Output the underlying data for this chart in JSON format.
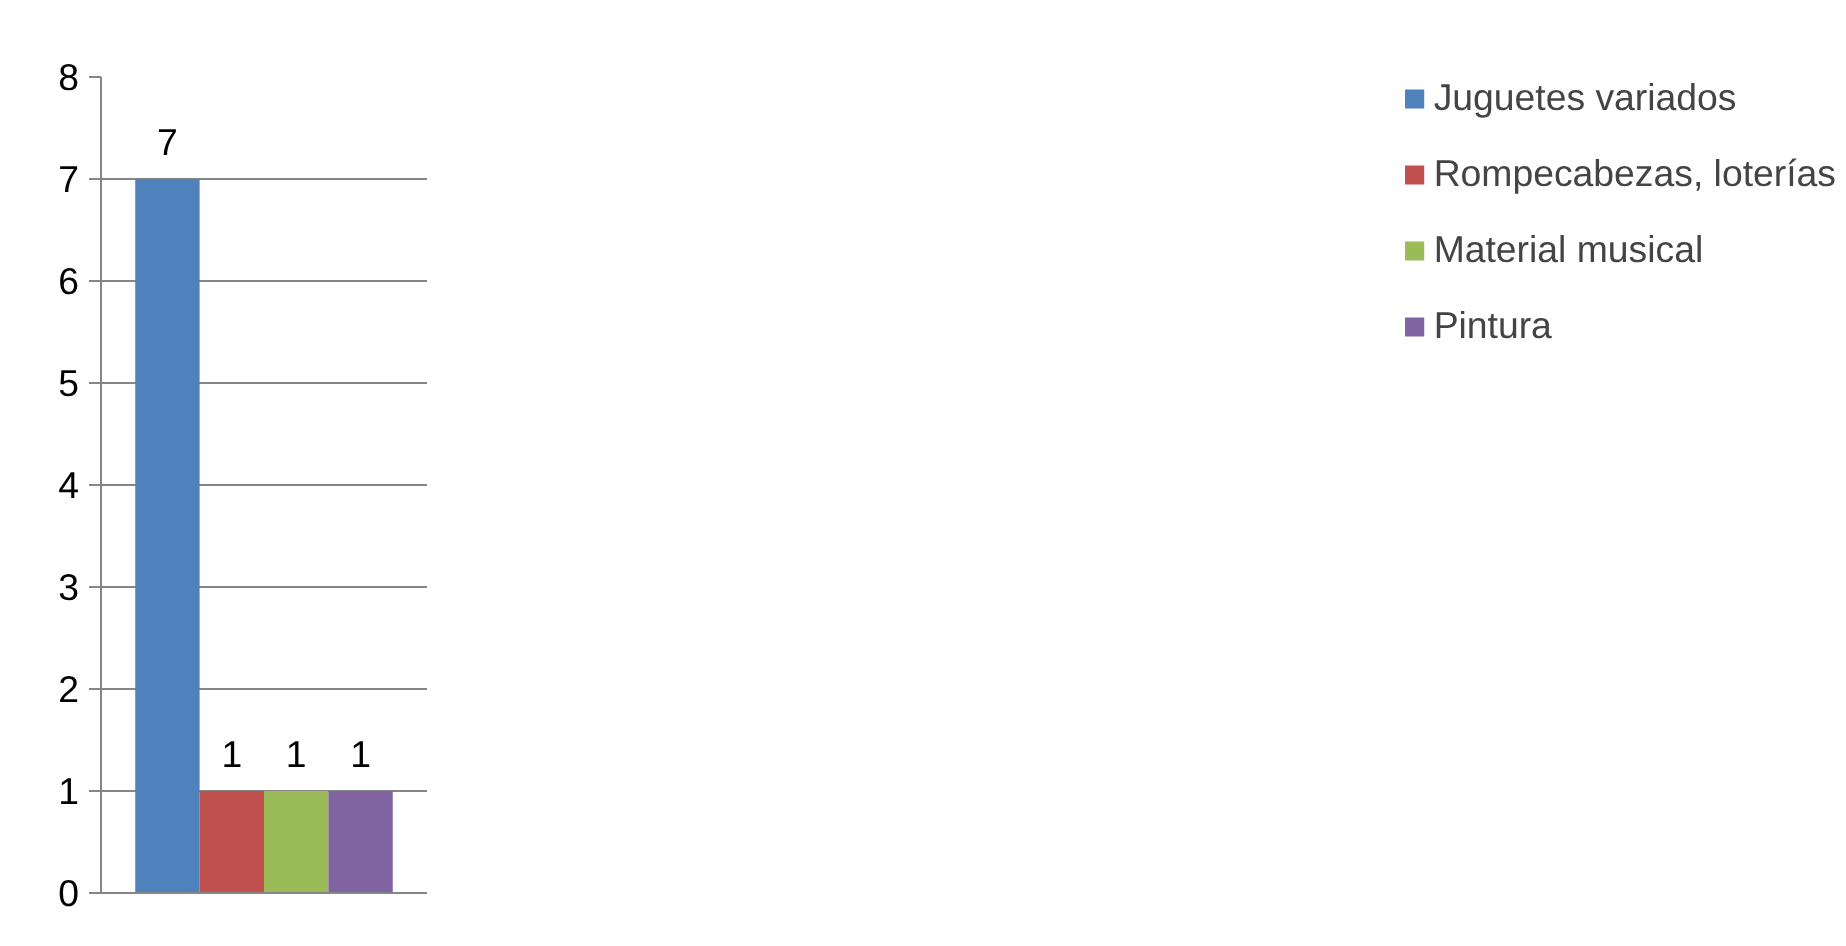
{
  "chart_data": {
    "type": "bar",
    "categories": [
      null
    ],
    "series": [
      {
        "name": "Juguetes variados",
        "color": "#4f81bd",
        "values": [
          7
        ]
      },
      {
        "name": "Rompecabezas, loterías",
        "color": "#c0504d",
        "values": [
          1
        ]
      },
      {
        "name": "Material musical",
        "color": "#9bbb59",
        "values": [
          1
        ]
      },
      {
        "name": "Pintura",
        "color": "#8064a2",
        "values": [
          1
        ]
      }
    ],
    "ylim": [
      0,
      8
    ],
    "yticks": [
      0,
      1,
      2,
      3,
      4,
      5,
      6,
      7,
      8
    ],
    "grid": "y",
    "legend": "right",
    "data_labels": true
  }
}
